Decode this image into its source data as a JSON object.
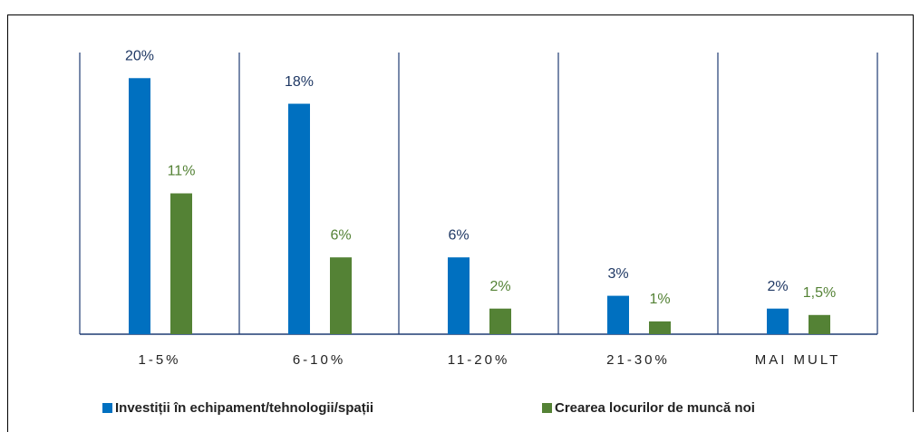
{
  "chart_data": {
    "type": "bar",
    "categories": [
      "1-5%",
      "6-10%",
      "11-20%",
      "21-30%",
      "MAI MULT"
    ],
    "series": [
      {
        "name": "Investiții în echipament/tehnologii/spații",
        "color": "#0070c0",
        "label_color": "#1f3864",
        "values": [
          20,
          18,
          6,
          3,
          2
        ],
        "value_labels": [
          "20%",
          "18%",
          "6%",
          "3%",
          "2%"
        ]
      },
      {
        "name": "Crearea locurilor de muncă noi",
        "color": "#548235",
        "label_color": "#548235",
        "values": [
          11,
          6,
          2,
          1,
          1.5
        ],
        "value_labels": [
          "11%",
          "6%",
          "2%",
          "1%",
          "1,5%"
        ]
      }
    ],
    "ylim": [
      0,
      22
    ],
    "legend": "bottom"
  }
}
